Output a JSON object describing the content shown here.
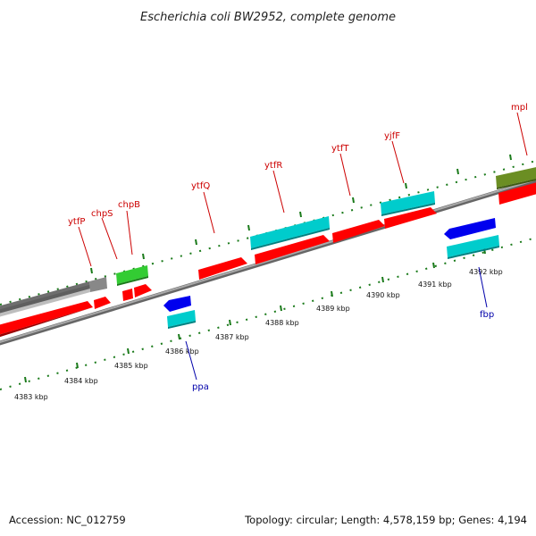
{
  "title": "Escherichia coli BW2952, complete genome",
  "footer": {
    "accession": "Accession: NC_012759",
    "summary": "Topology: circular; Length: 4,578,159 bp; Genes: 4,194"
  },
  "kbp_labels": [
    "4383 kbp",
    "4384 kbp",
    "4385 kbp",
    "4386 kbp",
    "4387 kbp",
    "4388 kbp",
    "4389 kbp",
    "4390 kbp",
    "4391 kbp",
    "4392 kbp"
  ],
  "genes_top": [
    "ytfP",
    "chpS",
    "chpB",
    "ytfQ",
    "ytfR",
    "ytfT",
    "yjfF",
    "mpl"
  ],
  "genes_bottom": [
    "ppa",
    "fbp"
  ],
  "colors": {
    "gene_red": "#ff0000",
    "cyan": "#00cccc",
    "blue": "#0000ee",
    "green": "#33cc33",
    "olive": "#6b8e23",
    "gray": "#777777",
    "backbone": "#888888",
    "tick": "#1a7a1a",
    "label_red": "#cc0000",
    "label_blue": "#0000aa"
  }
}
